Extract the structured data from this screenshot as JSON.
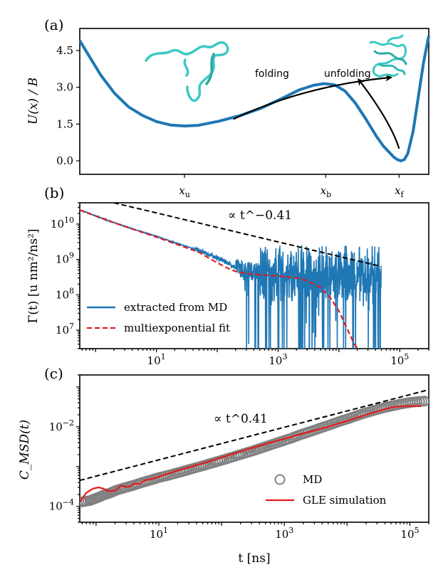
{
  "chart_data": [
    {
      "panel": "(a)",
      "type": "line",
      "ylabel": "U(x) / B",
      "yticks": [
        "0.0",
        "1.5",
        "3.0",
        "4.5"
      ],
      "ylim": [
        -0.55,
        5.4
      ],
      "xlim": [
        0,
        1
      ],
      "xticks": [
        "x_u",
        "x_b",
        "x_f"
      ],
      "xtick_positions": [
        0.3,
        0.705,
        0.915
      ],
      "series": [
        {
          "color": "#1f77b4",
          "x": [
            0,
            0.03,
            0.06,
            0.1,
            0.14,
            0.18,
            0.22,
            0.26,
            0.3,
            0.34,
            0.4,
            0.46,
            0.52,
            0.58,
            0.63,
            0.67,
            0.7,
            0.73,
            0.76,
            0.79,
            0.82,
            0.85,
            0.87,
            0.89,
            0.9,
            0.91,
            0.92,
            0.93,
            0.94,
            0.955,
            0.97,
            0.985,
            1.0
          ],
          "y": [
            4.9,
            4.2,
            3.5,
            2.75,
            2.2,
            1.85,
            1.6,
            1.46,
            1.42,
            1.45,
            1.62,
            1.85,
            2.15,
            2.55,
            2.9,
            3.08,
            3.15,
            3.1,
            2.85,
            2.35,
            1.7,
            1.0,
            0.6,
            0.3,
            0.15,
            0.05,
            0.0,
            0.05,
            0.3,
            1.2,
            2.6,
            4.0,
            5.1
          ]
        }
      ],
      "annotations": [
        {
          "text": "folding",
          "type": "arrow",
          "from": [
            0.44,
            1.7
          ],
          "to": [
            0.89,
            3.4
          ]
        },
        {
          "text": "unfolding",
          "type": "arrow",
          "from": [
            0.915,
            0.5
          ],
          "to": [
            0.8,
            3.3
          ]
        }
      ],
      "images": [
        "unfolded-protein-icon",
        "folded-protein-icon"
      ]
    },
    {
      "panel": "(b)",
      "type": "line",
      "ylabel": "Γ(t) [u nm²/ns²]",
      "yscale": "log",
      "xscale": "log",
      "xlim": [
        0.55,
        300000
      ],
      "ylim": [
        3000000,
        40000000000
      ],
      "yticks": [
        "10^7",
        "10^8",
        "10^9",
        "10^10"
      ],
      "xticks": [
        "10^1",
        "10^3",
        "10^5"
      ],
      "legend": "lower-left",
      "series": [
        {
          "name": "extracted from MD",
          "color": "#1f77b4",
          "x": [
            0.55,
            1,
            2,
            5,
            10,
            20,
            50,
            100,
            150,
            200,
            300,
            500,
            700,
            1000,
            2000,
            5000,
            10000,
            20000,
            50000
          ],
          "y": [
            25000000000,
            17000000000,
            11000000000,
            6500000000,
            4500000000,
            3000000000,
            1800000000,
            1100000000,
            800000000,
            600000000,
            500000000,
            450000000,
            420000000,
            400000000,
            400000000,
            400000000,
            400000000,
            400000000,
            400000000
          ]
        },
        {
          "name": "multiexponential fit",
          "color": "#e41a1c",
          "dash": true,
          "x": [
            0.55,
            1,
            2,
            5,
            10,
            20,
            50,
            100,
            150,
            200,
            300,
            500,
            1000,
            2000,
            3000,
            5000,
            7000,
            10000,
            14000,
            18000,
            22000
          ],
          "y": [
            25000000000,
            17000000000,
            11000000000,
            6400000000,
            4300000000,
            2800000000,
            1600000000,
            800000000,
            560000000,
            460000000,
            400000000,
            370000000,
            340000000,
            300000000,
            250000000,
            160000000,
            90000000,
            35000000,
            10000000,
            4000000,
            2500000
          ]
        },
        {
          "name": "power law",
          "color": "#000000",
          "dash": true,
          "x": [
            2.0,
            50000
          ],
          "y": [
            40000000000,
            630000000
          ]
        }
      ],
      "annotation": "∝ t^−0.41"
    },
    {
      "panel": "(c)",
      "type": "scatter",
      "ylabel": "C_MSD(t)",
      "xlabel": "t [ns]",
      "yscale": "log",
      "xscale": "log",
      "xlim": [
        0.55,
        200000
      ],
      "ylim": [
        4e-05,
        0.2
      ],
      "yticks": [
        "10^−4",
        "10^−2"
      ],
      "xticks": [
        "10^1",
        "10^3",
        "10^5"
      ],
      "legend": "lower-right",
      "series": [
        {
          "name": "MD",
          "color": "#808080",
          "marker": "open-circle",
          "x": [
            0.6,
            0.8,
            1,
            1.3,
            1.7,
            2.2,
            3,
            4,
            5.5,
            7.5,
            10,
            14,
            20,
            28,
            40,
            56,
            80,
            110,
            160,
            220,
            320,
            450,
            640,
            900,
            1300,
            1800,
            2600,
            3700,
            5200,
            7400,
            10500,
            15000,
            21000,
            30000,
            42000,
            60000,
            85000,
            120000,
            170000
          ],
          "y": [
            0.00013,
            0.00014,
            0.00016,
            0.00019,
            0.00022,
            0.00026,
            0.0003,
            0.00034,
            0.0004,
            0.00046,
            0.00053,
            0.0006,
            0.0007,
            0.00081,
            0.00095,
            0.0011,
            0.0013,
            0.0015,
            0.0018,
            0.0021,
            0.0025,
            0.003,
            0.0036,
            0.0043,
            0.0052,
            0.0063,
            0.0076,
            0.0092,
            0.011,
            0.0134,
            0.016,
            0.0195,
            0.023,
            0.027,
            0.031,
            0.035,
            0.039,
            0.042,
            0.044
          ]
        },
        {
          "name": "GLE simulation",
          "color": "#e41a1c",
          "x": [
            0.55,
            0.7,
            0.9,
            1.1,
            1.3,
            1.6,
            2,
            2.5,
            3,
            3.5,
            4,
            5,
            6,
            8,
            10,
            20,
            50,
            100,
            200,
            500,
            1000,
            2000,
            5000,
            10000,
            20000,
            40000,
            60000,
            100000,
            150000
          ],
          "y": [
            0.00013,
            0.00022,
            0.00028,
            0.0003,
            0.00028,
            0.00024,
            0.00025,
            0.00033,
            0.00031,
            0.00032,
            0.00037,
            0.00037,
            0.00045,
            0.0005,
            0.00055,
            0.0008,
            0.0012,
            0.0017,
            0.0024,
            0.0037,
            0.005,
            0.0068,
            0.01,
            0.014,
            0.02,
            0.028,
            0.032,
            0.033,
            0.033
          ]
        },
        {
          "name": "power law",
          "color": "#000000",
          "dash": true,
          "x": [
            0.55,
            200000
          ],
          "y": [
            0.00045,
            0.085
          ]
        }
      ],
      "annotation": "∝ t^0.41"
    }
  ]
}
